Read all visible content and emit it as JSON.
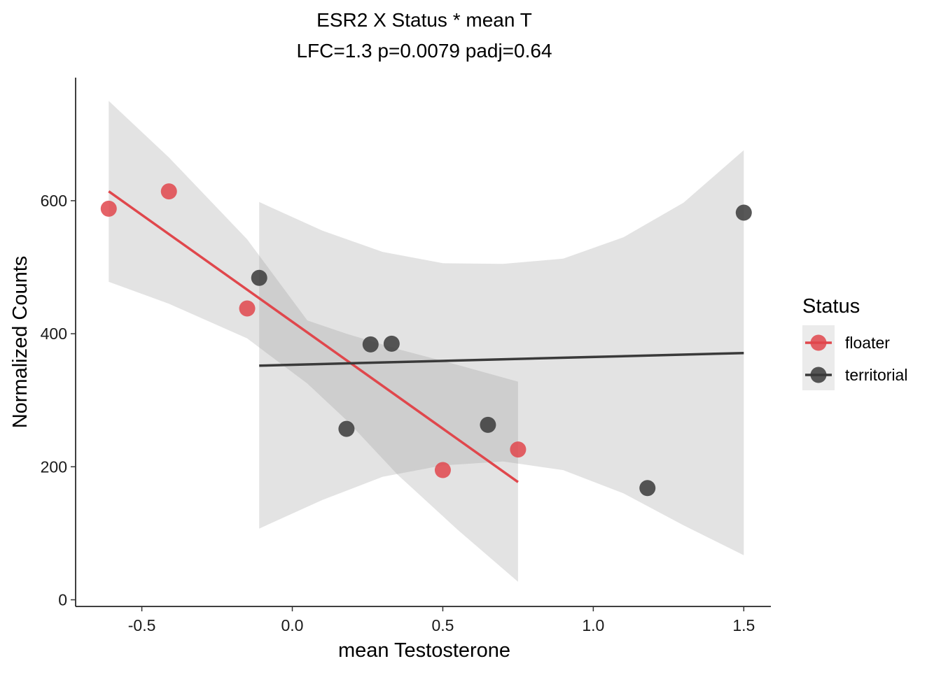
{
  "chart_data": {
    "type": "scatter",
    "title": "ESR2 X Status * mean T",
    "subtitle": "LFC=1.3 p=0.0079 padj=0.64",
    "xlabel": "mean Testosterone",
    "ylabel": "Normalized Counts",
    "xlim": [
      -0.72,
      1.59
    ],
    "ylim": [
      -10,
      785
    ],
    "x_ticks": [
      -0.5,
      0.0,
      0.5,
      1.0,
      1.5
    ],
    "x_tick_labels": [
      "-0.5",
      "0.0",
      "0.5",
      "1.0",
      "1.5"
    ],
    "y_ticks": [
      0,
      200,
      400,
      600
    ],
    "y_tick_labels": [
      "0",
      "200",
      "400",
      "600"
    ],
    "grid": false,
    "legend": {
      "title": "Status",
      "position": "right"
    },
    "series": [
      {
        "name": "floater",
        "color": "#e0474c",
        "points": [
          {
            "x": -0.61,
            "y": 588
          },
          {
            "x": -0.41,
            "y": 614
          },
          {
            "x": -0.15,
            "y": 438
          },
          {
            "x": 0.5,
            "y": 195
          },
          {
            "x": 0.75,
            "y": 226
          }
        ],
        "fit": {
          "x": [
            -0.61,
            0.75
          ],
          "y": [
            614,
            177
          ]
        },
        "ribbon": {
          "x": [
            -0.61,
            -0.41,
            -0.15,
            0.05,
            0.18,
            0.35,
            0.55,
            0.75
          ],
          "lower": [
            478,
            445,
            393,
            325,
            270,
            188,
            105,
            27
          ],
          "upper": [
            750,
            665,
            542,
            420,
            400,
            377,
            353,
            328
          ]
        }
      },
      {
        "name": "territorial",
        "color": "#3a3a3a",
        "points": [
          {
            "x": -0.11,
            "y": 484
          },
          {
            "x": 0.18,
            "y": 257
          },
          {
            "x": 0.26,
            "y": 384
          },
          {
            "x": 0.33,
            "y": 385
          },
          {
            "x": 0.65,
            "y": 263
          },
          {
            "x": 1.18,
            "y": 168
          },
          {
            "x": 1.5,
            "y": 582
          }
        ],
        "fit": {
          "x": [
            -0.11,
            1.5
          ],
          "y": [
            352,
            371
          ]
        },
        "ribbon": {
          "x": [
            -0.11,
            0.1,
            0.3,
            0.5,
            0.7,
            0.9,
            1.1,
            1.3,
            1.5
          ],
          "lower": [
            107,
            150,
            185,
            202,
            208,
            195,
            160,
            112,
            67
          ],
          "upper": [
            598,
            555,
            523,
            506,
            505,
            513,
            545,
            597,
            676
          ]
        }
      }
    ]
  }
}
